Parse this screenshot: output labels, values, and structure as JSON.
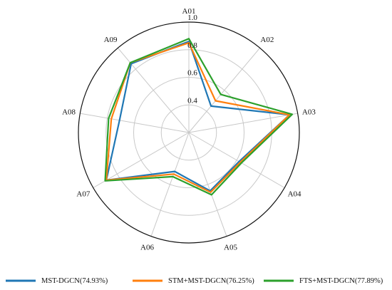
{
  "chart_data": {
    "type": "radar",
    "categories": [
      "A01",
      "A02",
      "A03",
      "A04",
      "A05",
      "A06",
      "A07",
      "A08",
      "A09"
    ],
    "rlim": [
      0.2,
      1.0
    ],
    "rticks": [
      0.4,
      0.6,
      0.8,
      1.0
    ],
    "rtick_labels": [
      "0.4",
      "0.6",
      "0.8",
      "1.0"
    ],
    "grid": true,
    "legend_position": "bottom",
    "series": [
      {
        "name": "MST-DGCN(74.93%)",
        "color": "#1f77b4",
        "values": [
          0.86,
          0.45,
          0.94,
          0.62,
          0.65,
          0.5,
          0.89,
          0.71,
          0.85
        ]
      },
      {
        "name": "STM+MST-DGCN(76.25%)",
        "color": "#ff7f0e",
        "values": [
          0.85,
          0.5,
          0.94,
          0.63,
          0.66,
          0.52,
          0.89,
          0.77,
          0.86
        ]
      },
      {
        "name": "FTS+MST-DGCN(77.89%)",
        "color": "#2ca02c",
        "values": [
          0.88,
          0.56,
          0.96,
          0.64,
          0.68,
          0.54,
          0.9,
          0.79,
          0.86
        ]
      }
    ]
  }
}
